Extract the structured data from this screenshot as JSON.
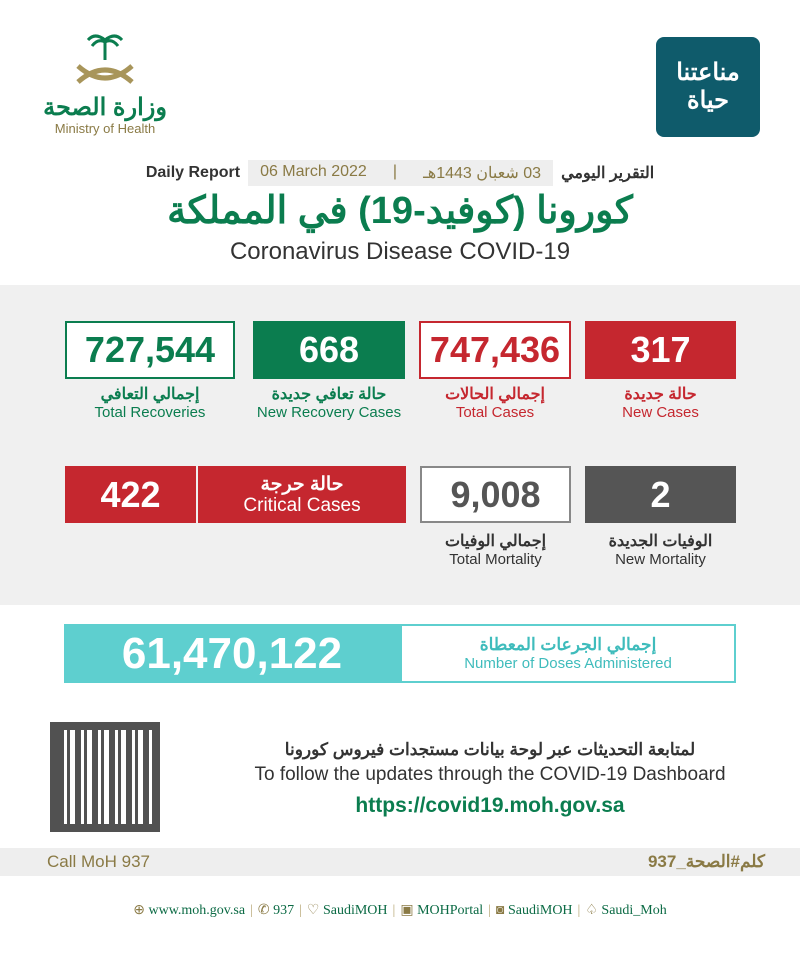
{
  "header": {
    "moh_logo_ar": "وزارة الصحة",
    "moh_logo_en": "Ministry of Health",
    "campaign_logo_ar": "مناعتنا حياة",
    "report_en": "Daily Report",
    "date_en": "06 March 2022",
    "date_hijri": "03 شعبان 1443هـ",
    "report_ar": "التقرير اليومي",
    "title_ar": "كورونا (كوفيد-19) في المملكة",
    "title_en": "Coronavirus Disease COVID-19"
  },
  "stats": {
    "total_recoveries": {
      "value": "727,544",
      "ar": "إجمالي التعافي",
      "en": "Total Recoveries"
    },
    "new_recoveries": {
      "value": "668",
      "ar": "حالة تعافي جديدة",
      "en": "New Recovery Cases"
    },
    "total_cases": {
      "value": "747,436",
      "ar": "إجمالي الحالات",
      "en": "Total Cases"
    },
    "new_cases": {
      "value": "317",
      "ar": "حالة جديدة",
      "en": "New Cases"
    },
    "critical": {
      "value": "422",
      "ar": "حالة حرجة",
      "en": "Critical Cases"
    },
    "total_mortality": {
      "value": "9,008",
      "ar": "إجمالي الوفيات",
      "en": "Total Mortality"
    },
    "new_mortality": {
      "value": "2",
      "ar": "الوفيات الجديدة",
      "en": "New Mortality"
    }
  },
  "doses": {
    "value": "61,470,122",
    "ar": "إجمالي الجرعات المعطاة",
    "en": "Number of Doses Administered"
  },
  "dashboard": {
    "ar": "لمتابعة التحديثات عبر لوحة بيانات مستجدات فيروس كورونا",
    "en": "To follow the updates through the COVID-19 Dashboard",
    "url": "https://covid19.moh.gov.sa"
  },
  "call": {
    "en": "Call MoH 937",
    "ar": "كلم#الصحة_937"
  },
  "footer": [
    {
      "icon": "globe-icon",
      "text": "www.moh.gov.sa"
    },
    {
      "icon": "phone-icon",
      "text": "937"
    },
    {
      "icon": "twitter-icon",
      "text": "SaudiMOH"
    },
    {
      "icon": "youtube-icon",
      "text": "MOHPortal"
    },
    {
      "icon": "instagram-icon",
      "text": "SaudiMOH"
    },
    {
      "icon": "snapchat-icon",
      "text": "Saudi_Moh"
    }
  ],
  "colors": {
    "green": "#0b7d4f",
    "red": "#c5272f",
    "gray": "#555555",
    "teal": "#5ecfcf",
    "gold": "#8a7a45"
  }
}
